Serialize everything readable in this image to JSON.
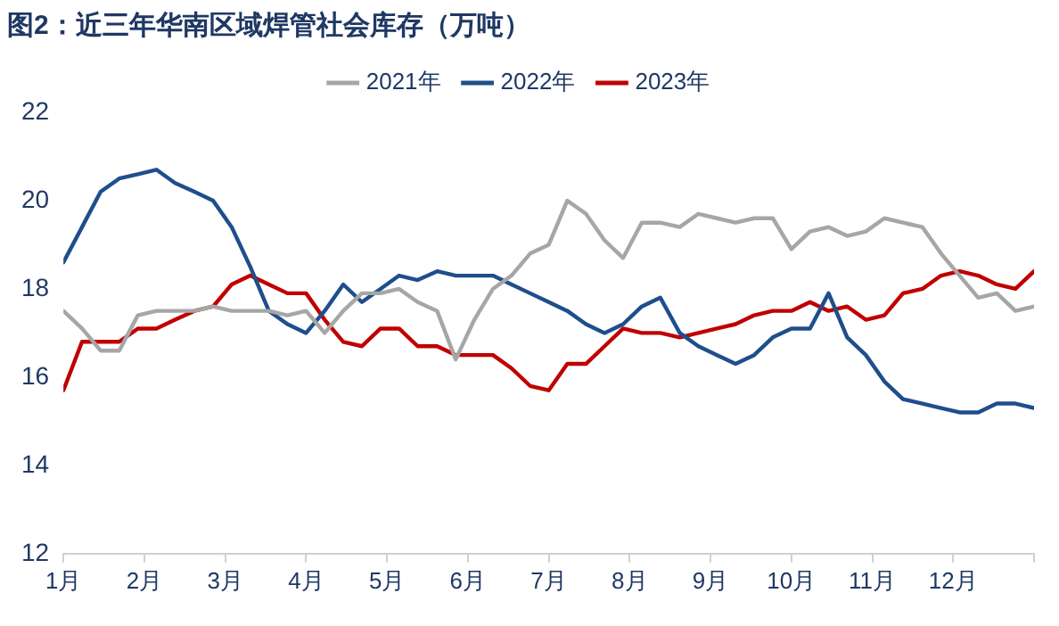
{
  "chart_data": {
    "type": "line",
    "title": "图2：近三年华南区域焊管社会库存（万吨）",
    "x": [
      1,
      1.23,
      1.46,
      1.69,
      1.92,
      2.15,
      2.38,
      2.62,
      2.85,
      3.08,
      3.31,
      3.54,
      3.77,
      4,
      4.23,
      4.46,
      4.69,
      4.92,
      5.15,
      5.38,
      5.62,
      5.85,
      6.08,
      6.31,
      6.54,
      6.77,
      7,
      7.23,
      7.46,
      7.69,
      7.92,
      8.15,
      8.38,
      8.62,
      8.85,
      9.08,
      9.31,
      9.54,
      9.77,
      10,
      10.23,
      10.46,
      10.69,
      10.92,
      11.15,
      11.38,
      11.62,
      11.85,
      12.08,
      12.31,
      12.54,
      12.77,
      13
    ],
    "series": [
      {
        "name": "2021年",
        "color": "#a6a6a6",
        "values": [
          17.5,
          17.1,
          16.6,
          16.6,
          17.4,
          17.5,
          17.5,
          17.5,
          17.6,
          17.5,
          17.5,
          17.5,
          17.4,
          17.5,
          17.0,
          17.5,
          17.9,
          17.9,
          18.0,
          17.7,
          17.5,
          16.4,
          17.3,
          18.0,
          18.3,
          18.8,
          19.0,
          20.0,
          19.7,
          19.1,
          18.7,
          19.5,
          19.5,
          19.4,
          19.7,
          19.6,
          19.5,
          19.6,
          19.6,
          18.9,
          19.3,
          19.4,
          19.2,
          19.3,
          19.6,
          19.5,
          19.4,
          18.8,
          18.3,
          17.8,
          17.9,
          17.5,
          17.6
        ]
      },
      {
        "name": "2022年",
        "color": "#1f4e8c",
        "values": [
          18.6,
          19.4,
          20.2,
          20.5,
          20.6,
          20.7,
          20.4,
          20.2,
          20.0,
          19.4,
          18.5,
          17.5,
          17.2,
          17.0,
          17.5,
          18.1,
          17.7,
          18.0,
          18.3,
          18.2,
          18.4,
          18.3,
          18.3,
          18.3,
          18.1,
          17.9,
          17.7,
          17.5,
          17.2,
          17.0,
          17.2,
          17.6,
          17.8,
          17.0,
          16.7,
          16.5,
          16.3,
          16.5,
          16.9,
          17.1,
          17.1,
          17.9,
          16.9,
          16.5,
          15.9,
          15.5,
          15.4,
          15.3,
          15.2,
          15.2,
          15.4,
          15.4,
          15.3
        ]
      },
      {
        "name": "2023年",
        "color": "#c00000",
        "values": [
          15.7,
          16.8,
          16.8,
          16.8,
          17.1,
          17.1,
          17.3,
          17.5,
          17.6,
          18.1,
          18.3,
          18.1,
          17.9,
          17.9,
          17.3,
          16.8,
          16.7,
          17.1,
          17.1,
          16.7,
          16.7,
          16.5,
          16.5,
          16.5,
          16.2,
          15.8,
          15.7,
          16.3,
          16.3,
          16.7,
          17.1,
          17.0,
          17.0,
          16.9,
          17.0,
          17.1,
          17.2,
          17.4,
          17.5,
          17.5,
          17.7,
          17.5,
          17.6,
          17.3,
          17.4,
          17.9,
          18.0,
          18.3,
          18.4,
          18.3,
          18.1,
          18.0,
          18.4
        ]
      }
    ],
    "xlim": [
      1,
      13
    ],
    "xticks": [
      {
        "value": 1,
        "label": "1月"
      },
      {
        "value": 2,
        "label": "2月"
      },
      {
        "value": 3,
        "label": "3月"
      },
      {
        "value": 4,
        "label": "4月"
      },
      {
        "value": 5,
        "label": "5月"
      },
      {
        "value": 6,
        "label": "6月"
      },
      {
        "value": 7,
        "label": "7月"
      },
      {
        "value": 8,
        "label": "8月"
      },
      {
        "value": 9,
        "label": "9月"
      },
      {
        "value": 10,
        "label": "10月"
      },
      {
        "value": 11,
        "label": "11月"
      },
      {
        "value": 12,
        "label": "12月"
      },
      {
        "value": 13,
        "label": null
      }
    ],
    "ylim": [
      12,
      22
    ],
    "yticks": [
      12,
      14,
      16,
      18,
      20,
      22
    ],
    "grid": false,
    "legend": "top",
    "marker": "none",
    "line_style": "solid"
  }
}
